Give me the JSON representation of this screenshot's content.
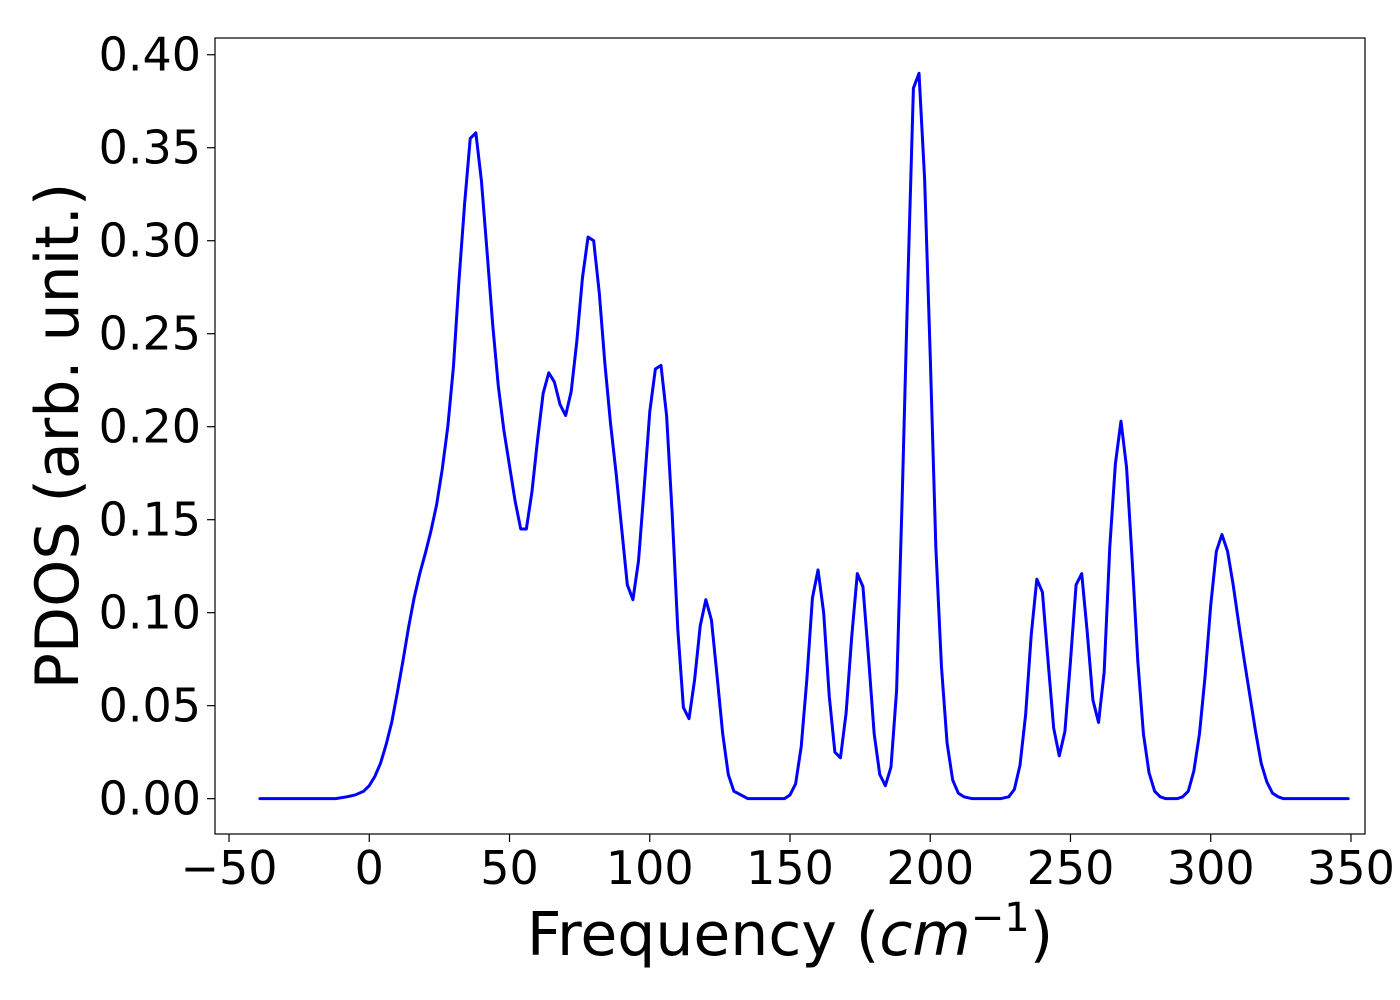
{
  "chart_data": {
    "type": "line",
    "xlabel": "Frequency (",
    "xlabel_unit_base": "cm",
    "xlabel_unit_exp": "−1",
    "xlabel_close": ")",
    "ylabel": "PDOS (arb. unit.)",
    "xlim": [
      -55,
      355
    ],
    "ylim": [
      -0.019,
      0.409
    ],
    "xticks": [
      -50,
      0,
      50,
      100,
      150,
      200,
      250,
      300,
      350
    ],
    "xtick_labels": [
      "−50",
      "0",
      "50",
      "100",
      "150",
      "200",
      "250",
      "300",
      "350"
    ],
    "yticks": [
      0.0,
      0.05,
      0.1,
      0.15,
      0.2,
      0.25,
      0.3,
      0.35,
      0.4
    ],
    "ytick_labels": [
      "0.00",
      "0.05",
      "0.10",
      "0.15",
      "0.20",
      "0.25",
      "0.30",
      "0.35",
      "0.40"
    ],
    "grid": false,
    "series": [
      {
        "color": "#0000ff",
        "x": [
          -39,
          -30,
          -20,
          -12,
          -8,
          -5,
          -2,
          0,
          2,
          4,
          6,
          8,
          10,
          12,
          14,
          16,
          18,
          20,
          22,
          24,
          26,
          28,
          30,
          32,
          34,
          36,
          38,
          40,
          42,
          44,
          46,
          48,
          50,
          52,
          54,
          56,
          58,
          60,
          62,
          64,
          66,
          68,
          70,
          72,
          74,
          76,
          78,
          80,
          82,
          84,
          86,
          88,
          90,
          92,
          94,
          96,
          98,
          100,
          102,
          104,
          106,
          108,
          110,
          112,
          114,
          116,
          118,
          120,
          122,
          124,
          126,
          128,
          130,
          135,
          140,
          145,
          148,
          150,
          152,
          154,
          156,
          158,
          160,
          162,
          164,
          166,
          168,
          170,
          172,
          174,
          176,
          178,
          180,
          182,
          184,
          186,
          188,
          190,
          192,
          194,
          196,
          198,
          200,
          202,
          204,
          206,
          208,
          210,
          212,
          215,
          220,
          225,
          228,
          230,
          232,
          234,
          236,
          238,
          240,
          242,
          244,
          246,
          248,
          250,
          252,
          254,
          256,
          258,
          260,
          262,
          264,
          266,
          268,
          270,
          272,
          274,
          276,
          278,
          280,
          282,
          284,
          286,
          288,
          290,
          292,
          294,
          296,
          298,
          300,
          302,
          304,
          306,
          308,
          310,
          312,
          314,
          316,
          318,
          320,
          322,
          324,
          326,
          330,
          340,
          349
        ],
        "y": [
          0.0,
          0.0,
          0.0,
          0.0,
          0.001,
          0.002,
          0.004,
          0.007,
          0.012,
          0.019,
          0.029,
          0.041,
          0.057,
          0.074,
          0.092,
          0.108,
          0.121,
          0.132,
          0.144,
          0.158,
          0.177,
          0.2,
          0.232,
          0.279,
          0.32,
          0.355,
          0.358,
          0.332,
          0.294,
          0.255,
          0.222,
          0.198,
          0.179,
          0.16,
          0.145,
          0.145,
          0.165,
          0.193,
          0.218,
          0.229,
          0.224,
          0.212,
          0.206,
          0.219,
          0.246,
          0.28,
          0.302,
          0.3,
          0.272,
          0.234,
          0.202,
          0.175,
          0.145,
          0.115,
          0.107,
          0.128,
          0.167,
          0.208,
          0.231,
          0.233,
          0.206,
          0.153,
          0.091,
          0.049,
          0.043,
          0.064,
          0.093,
          0.107,
          0.096,
          0.066,
          0.035,
          0.013,
          0.004,
          0.0,
          0.0,
          0.0,
          0.0,
          0.002,
          0.008,
          0.028,
          0.064,
          0.108,
          0.123,
          0.1,
          0.055,
          0.025,
          0.022,
          0.046,
          0.087,
          0.121,
          0.114,
          0.076,
          0.035,
          0.013,
          0.007,
          0.017,
          0.058,
          0.162,
          0.277,
          0.382,
          0.39,
          0.333,
          0.238,
          0.135,
          0.071,
          0.03,
          0.01,
          0.003,
          0.001,
          0.0,
          0.0,
          0.0,
          0.001,
          0.005,
          0.018,
          0.045,
          0.088,
          0.118,
          0.111,
          0.074,
          0.038,
          0.023,
          0.036,
          0.074,
          0.115,
          0.121,
          0.089,
          0.053,
          0.041,
          0.068,
          0.135,
          0.18,
          0.203,
          0.178,
          0.128,
          0.074,
          0.035,
          0.014,
          0.004,
          0.001,
          0.0,
          0.0,
          0.0,
          0.001,
          0.004,
          0.015,
          0.035,
          0.066,
          0.104,
          0.133,
          0.142,
          0.133,
          0.115,
          0.094,
          0.074,
          0.055,
          0.036,
          0.019,
          0.009,
          0.003,
          0.001,
          0.0,
          0.0,
          0.0,
          0.0
        ]
      }
    ]
  }
}
